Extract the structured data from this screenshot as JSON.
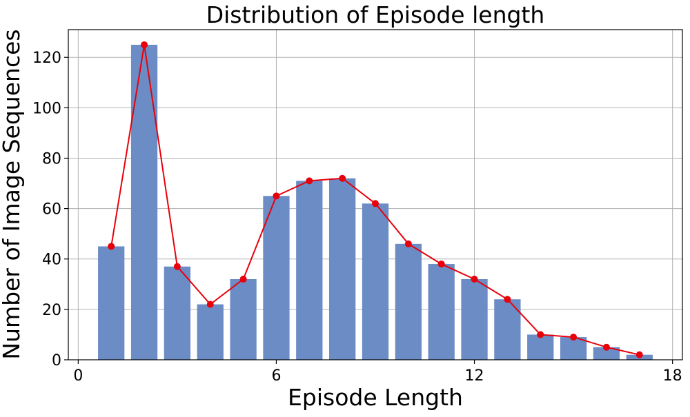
{
  "chart_data": {
    "type": "bar",
    "title": "Distribution of Episode length",
    "xlabel": "Episode Length",
    "ylabel": "Number of Image Sequences",
    "xlim": [
      -0.3,
      18.3
    ],
    "ylim": [
      0,
      131
    ],
    "x_ticks": [
      0,
      6,
      12,
      18
    ],
    "y_ticks": [
      0,
      20,
      40,
      60,
      80,
      100,
      120
    ],
    "grid": true,
    "bar_color": "#6b8cc4",
    "line_color": "#e8000b",
    "x": [
      1,
      2,
      3,
      4,
      5,
      6,
      7,
      8,
      9,
      10,
      11,
      12,
      13,
      14,
      15,
      16,
      17
    ],
    "values": [
      45,
      125,
      37,
      22,
      32,
      65,
      71,
      72,
      62,
      46,
      38,
      32,
      24,
      10,
      9,
      5,
      2
    ],
    "overlay": {
      "type": "line",
      "marker": "circle"
    }
  }
}
